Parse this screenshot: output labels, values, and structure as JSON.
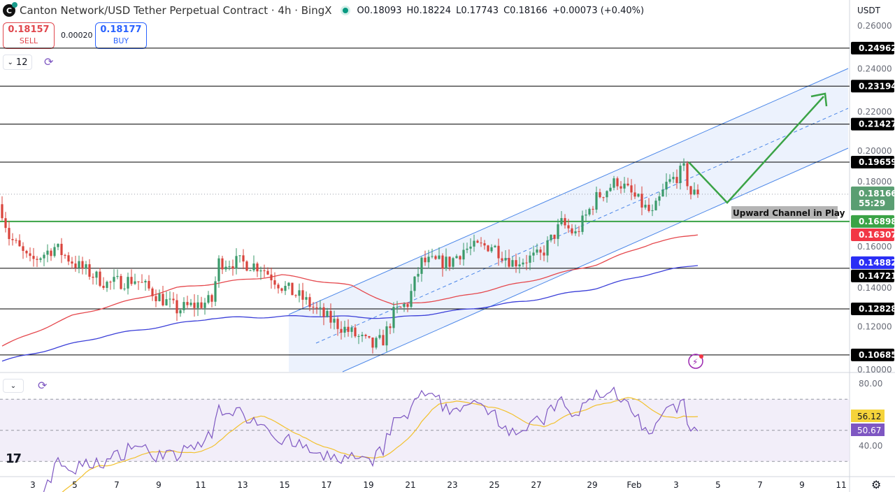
{
  "header": {
    "title": "Canton Network/USD Tether Perpetual Contract · 4h · BingX",
    "open": "O0.18093",
    "high": "H0.18224",
    "low": "L0.17743",
    "close": "C0.18166",
    "change": "+0.00073 (+0.40%)"
  },
  "trade": {
    "sell_price": "0.18157",
    "sell_label": "SELL",
    "spread": "0.00020",
    "buy_price": "0.18177",
    "buy_label": "BUY"
  },
  "indicators_toggle": {
    "count": "12"
  },
  "currency": "USDT",
  "annotation": "Upward Channel in Play",
  "colors": {
    "up": "#3a9a6a",
    "down": "#d9433b",
    "ma_fast": "#e5484d",
    "ma_slow": "#3b3fd8",
    "channel": "#4a86e8",
    "arrow": "#3aa346",
    "rsi": "#7e57c2",
    "rsi_ma": "#f2c12e"
  },
  "chart_data": {
    "type": "candlestick",
    "price_axis_ticks": [
      "0.26000",
      "0.24000",
      "0.22000",
      "0.20000",
      "0.18000",
      "0.16000",
      "0.14000",
      "0.12000",
      "0.10000"
    ],
    "price_range": [
      0.1,
      0.26
    ],
    "horizontal_levels": [
      {
        "label": "0.24962",
        "value": 0.24962,
        "color": "#000000"
      },
      {
        "label": "0.23194",
        "value": 0.23194,
        "color": "#000000"
      },
      {
        "label": "0.21427",
        "value": 0.21427,
        "color": "#000000"
      },
      {
        "label": "0.19659",
        "value": 0.19659,
        "color": "#000000"
      },
      {
        "label": "0.16898",
        "value": 0.16898,
        "color": "#3aa346"
      },
      {
        "label": "0.14721",
        "value": 0.14721,
        "color": "#000000"
      },
      {
        "label": "0.12828",
        "value": 0.12828,
        "color": "#000000"
      },
      {
        "label": "0.10685",
        "value": 0.10685,
        "color": "#000000"
      }
    ],
    "last_price": {
      "label": "0.18166",
      "countdown": "55:29",
      "value": 0.18166
    },
    "ma_fast_last": {
      "label": "0.16307",
      "value": 0.16307
    },
    "ma_slow_last": {
      "label": "0.14882",
      "value": 0.14882
    },
    "close_keypoints_by_candle": [
      [
        0,
        0.174
      ],
      [
        2,
        0.162
      ],
      [
        8,
        0.15
      ],
      [
        15,
        0.157
      ],
      [
        22,
        0.148
      ],
      [
        30,
        0.14
      ],
      [
        38,
        0.142
      ],
      [
        50,
        0.128
      ],
      [
        60,
        0.132
      ],
      [
        62,
        0.15
      ],
      [
        68,
        0.15
      ],
      [
        74,
        0.148
      ],
      [
        80,
        0.139
      ],
      [
        86,
        0.133
      ],
      [
        92,
        0.125
      ],
      [
        100,
        0.117
      ],
      [
        106,
        0.111
      ],
      [
        109,
        0.114
      ],
      [
        112,
        0.126
      ],
      [
        116,
        0.131
      ],
      [
        120,
        0.15
      ],
      [
        128,
        0.15
      ],
      [
        132,
        0.156
      ],
      [
        140,
        0.158
      ],
      [
        146,
        0.15
      ],
      [
        154,
        0.153
      ],
      [
        160,
        0.168
      ],
      [
        164,
        0.163
      ],
      [
        170,
        0.18
      ],
      [
        176,
        0.188
      ],
      [
        181,
        0.18
      ],
      [
        186,
        0.172
      ],
      [
        190,
        0.186
      ],
      [
        195,
        0.193
      ],
      [
        197,
        0.182
      ],
      [
        199,
        0.18166
      ]
    ],
    "ma_fast_keypoints": [
      [
        0,
        0.111
      ],
      [
        20,
        0.125
      ],
      [
        50,
        0.138
      ],
      [
        80,
        0.144
      ],
      [
        100,
        0.139
      ],
      [
        112,
        0.13
      ],
      [
        128,
        0.133
      ],
      [
        150,
        0.141
      ],
      [
        170,
        0.149
      ],
      [
        186,
        0.159
      ],
      [
        199,
        0.16307
      ]
    ],
    "ma_slow_keypoints": [
      [
        0,
        0.104
      ],
      [
        30,
        0.116
      ],
      [
        60,
        0.124
      ],
      [
        90,
        0.125
      ],
      [
        112,
        0.124
      ],
      [
        128,
        0.127
      ],
      [
        150,
        0.132
      ],
      [
        170,
        0.138
      ],
      [
        186,
        0.145
      ],
      [
        199,
        0.14882
      ]
    ],
    "time_labels": [
      "3",
      "5",
      "7",
      "9",
      "11",
      "13",
      "15",
      "17",
      "19",
      "21",
      "23",
      "25",
      "27",
      "29",
      "Feb",
      "3",
      "5",
      "7",
      "9",
      "11"
    ],
    "rsi": {
      "axis_ticks": [
        "80.00",
        "40.00"
      ],
      "upper_band": 70,
      "mid": 50,
      "lower_band": 30,
      "rsi_ma_last": "56.12",
      "rsi_last": "50.67",
      "period": 14
    }
  }
}
